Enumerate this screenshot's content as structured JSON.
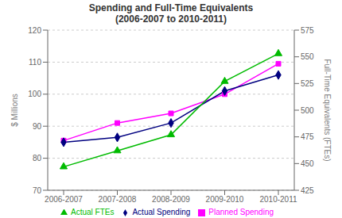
{
  "chart_data": {
    "type": "line",
    "title": "Spending and Full-Time Equivalents",
    "subtitle": "(2006-2007 to 2010-2011)",
    "categories": [
      "2006-2007",
      "2007-2008",
      "2008-2009",
      "2009-2010",
      "2010-2011"
    ],
    "series": [
      {
        "name": "Planned Spending",
        "color": "#FF00FF",
        "marker": "square",
        "values": [
          85.5,
          91.0,
          94.0,
          100.0,
          109.5
        ]
      },
      {
        "name": "Actual Spending",
        "color": "#000080",
        "marker": "diamond",
        "values": [
          85.0,
          86.5,
          91.0,
          101.0,
          106.0
        ]
      },
      {
        "name": "Actual FTEs",
        "color": "#00BB00",
        "marker": "triangle",
        "axis": "y2",
        "values": [
          447,
          462,
          477,
          527,
          553
        ]
      }
    ],
    "ylabel": "$ Millions",
    "y2label": "Full-Time Equivalents (FTEs)",
    "ylim": [
      70,
      120
    ],
    "yticks": [
      70,
      80,
      90,
      100,
      110,
      120
    ],
    "y2lim": [
      425,
      575
    ],
    "y2ticks": [
      425,
      450,
      475,
      500,
      525,
      550,
      575
    ],
    "grid": "y",
    "legend": "bottom"
  }
}
